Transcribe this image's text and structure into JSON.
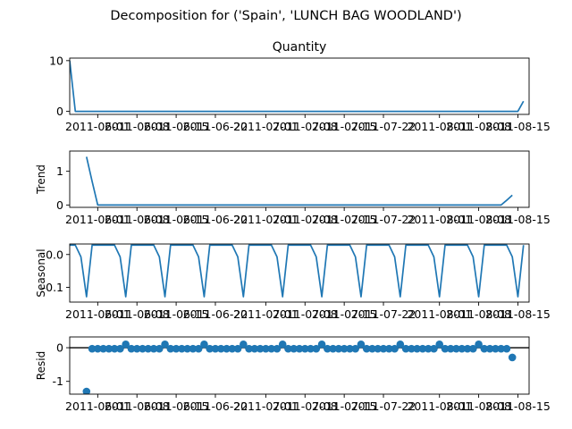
{
  "figure": {
    "title": "Decomposition for ('Spain', 'LUNCH BAG WOODLAND')"
  },
  "chart_data": [
    {
      "type": "line",
      "panel": "observed",
      "title": "Quantity",
      "ylabel": "",
      "ylim": [
        -0.6,
        10.5
      ],
      "yticks": [
        0,
        10
      ],
      "xticks": [
        "2011-06-01",
        "2011-06-08",
        "2011-06-15",
        "2011-06-22",
        "2011-07-01",
        "2011-07-08",
        "2011-07-15",
        "2011-07-22",
        "2011-08-01",
        "2011-08-08",
        "2011-08-15"
      ],
      "xrange": [
        "2011-05-27",
        "2011-08-17"
      ],
      "x_start": "2011-05-27",
      "values": [
        10,
        0,
        0,
        0,
        0,
        0,
        0,
        0,
        0,
        0,
        0,
        0,
        0,
        0,
        0,
        0,
        0,
        0,
        0,
        0,
        0,
        0,
        0,
        0,
        0,
        0,
        0,
        0,
        0,
        0,
        0,
        0,
        0,
        0,
        0,
        0,
        0,
        0,
        0,
        0,
        0,
        0,
        0,
        0,
        0,
        0,
        0,
        0,
        0,
        0,
        0,
        0,
        0,
        0,
        0,
        0,
        0,
        0,
        0,
        0,
        0,
        0,
        0,
        0,
        0,
        0,
        0,
        0,
        0,
        0,
        0,
        0,
        0,
        0,
        0,
        0,
        0,
        0,
        0,
        0,
        0,
        2
      ]
    },
    {
      "type": "line",
      "panel": "trend",
      "ylabel": "Trend",
      "ylim": [
        -0.07,
        1.6
      ],
      "yticks": [
        0,
        1
      ],
      "xticks": [
        "2011-06-01",
        "2011-06-08",
        "2011-06-15",
        "2011-06-22",
        "2011-07-01",
        "2011-07-08",
        "2011-07-15",
        "2011-07-22",
        "2011-08-01",
        "2011-08-08",
        "2011-08-15"
      ],
      "xrange": [
        "2011-05-27",
        "2011-08-17"
      ],
      "x": [
        "2011-05-30",
        "2011-05-31",
        "2011-06-01",
        "2011-08-12",
        "2011-08-13",
        "2011-08-14"
      ],
      "values": [
        1.43,
        0.7,
        0,
        0,
        0.14,
        0.29
      ]
    },
    {
      "type": "line",
      "panel": "seasonal",
      "ylabel": "Seasonal",
      "ylim": [
        -0.145,
        0.032
      ],
      "yticks": [
        0.0,
        -0.1
      ],
      "xticks": [
        "2011-06-01",
        "2011-06-08",
        "2011-06-15",
        "2011-06-22",
        "2011-07-01",
        "2011-07-08",
        "2011-07-15",
        "2011-07-22",
        "2011-08-01",
        "2011-08-08",
        "2011-08-15"
      ],
      "xrange": [
        "2011-05-27",
        "2011-08-17"
      ],
      "x_start": "2011-05-27",
      "pattern": [
        0.0286,
        0.0286,
        -0.0071,
        -0.1286,
        0.0286,
        0.0286,
        0.0286
      ],
      "count": 82
    },
    {
      "type": "scatter",
      "panel": "resid",
      "ylabel": "Resid",
      "ylim": [
        -1.38,
        0.32
      ],
      "yticks": [
        0,
        -1
      ],
      "baseline": 0,
      "xticks": [
        "2011-06-01",
        "2011-06-08",
        "2011-06-15",
        "2011-06-22",
        "2011-07-01",
        "2011-07-08",
        "2011-07-15",
        "2011-07-22",
        "2011-08-01",
        "2011-08-08",
        "2011-08-15"
      ],
      "xrange": [
        "2011-05-27",
        "2011-08-17"
      ],
      "x_start": "2011-05-30",
      "values": [
        -1.3,
        -0.03,
        -0.03,
        -0.03,
        -0.03,
        -0.03,
        -0.03,
        0.1,
        -0.03,
        -0.03,
        -0.03,
        -0.03,
        -0.03,
        -0.03,
        0.1,
        -0.03,
        -0.03,
        -0.03,
        -0.03,
        -0.03,
        -0.03,
        0.1,
        -0.03,
        -0.03,
        -0.03,
        -0.03,
        -0.03,
        -0.03,
        0.1,
        -0.03,
        -0.03,
        -0.03,
        -0.03,
        -0.03,
        -0.03,
        0.1,
        -0.03,
        -0.03,
        -0.03,
        -0.03,
        -0.03,
        -0.03,
        0.1,
        -0.03,
        -0.03,
        -0.03,
        -0.03,
        -0.03,
        -0.03,
        0.1,
        -0.03,
        -0.03,
        -0.03,
        -0.03,
        -0.03,
        -0.03,
        0.1,
        -0.03,
        -0.03,
        -0.03,
        -0.03,
        -0.03,
        -0.03,
        0.1,
        -0.03,
        -0.03,
        -0.03,
        -0.03,
        -0.03,
        -0.03,
        0.1,
        -0.03,
        -0.03,
        -0.03,
        -0.03,
        -0.03,
        -0.29
      ]
    }
  ]
}
